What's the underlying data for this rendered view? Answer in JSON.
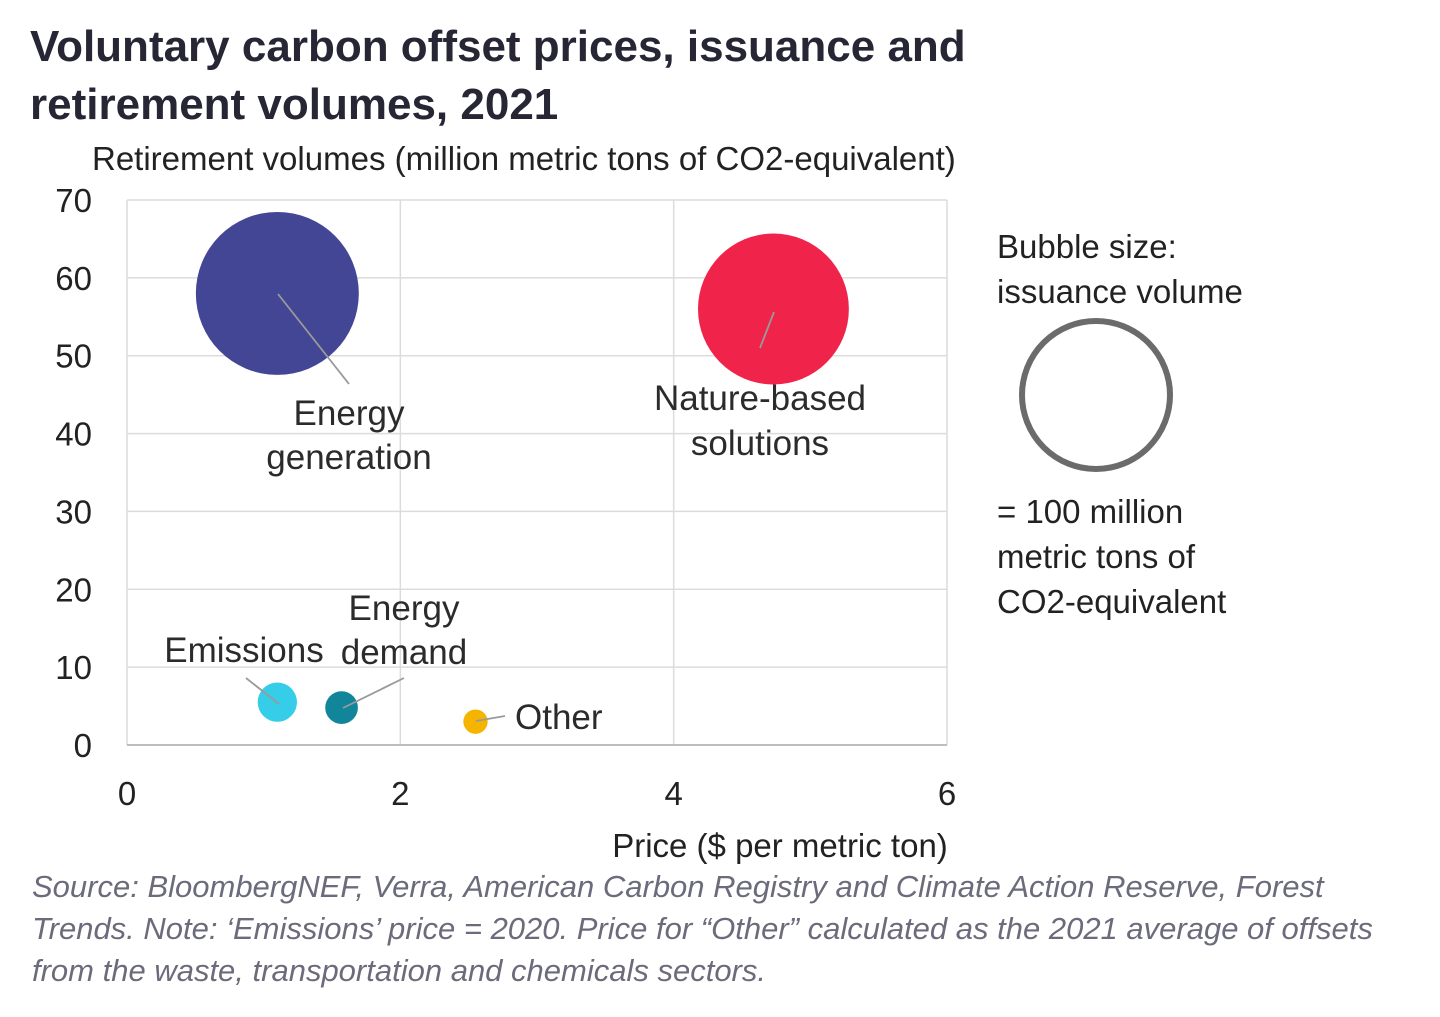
{
  "title_lines": [
    "Voluntary carbon offset prices, issuance and",
    "retirement volumes, 2021"
  ],
  "source_note": "Source: BloombergNEF, Verra, American Carbon Registry and Climate Action Reserve, Forest Trends. Note: ‘Emissions’ price = 2020. Price for “Other” calculated as the 2021 average of offsets from the waste, transportation and chemicals sectors.",
  "legend": {
    "heading_lines": [
      "Bubble size:",
      "issuance volume"
    ],
    "value_lines": [
      "= 100 million",
      "metric tons of",
      "CO2-equivalent"
    ],
    "reference_issuance": 100,
    "circle_color": "#6b6b6b"
  },
  "chart_data": {
    "type": "scatter",
    "subtype": "bubble",
    "ylabel": "Retirement volumes (million metric tons of CO2-equivalent)",
    "xlabel": "Price ($ per metric ton)",
    "xlim": [
      0,
      6
    ],
    "ylim": [
      0,
      70
    ],
    "xticks": [
      "0",
      "2",
      "4",
      "6"
    ],
    "yticks": [
      "0",
      "10",
      "20",
      "30",
      "40",
      "50",
      "60",
      "70"
    ],
    "grid": true,
    "series": [
      {
        "name": "Energy generation",
        "label_lines": [
          "Energy",
          "generation"
        ],
        "x": 1.1,
        "y": 58,
        "issuance": 112,
        "color": "#434595"
      },
      {
        "name": "Nature-based solutions",
        "label_lines": [
          "Nature-based",
          "solutions"
        ],
        "x": 4.73,
        "y": 56,
        "issuance": 96,
        "color": "#f0234a"
      },
      {
        "name": "Emissions",
        "label_lines": [
          "Emissions"
        ],
        "x": 1.1,
        "y": 5.5,
        "issuance": 6.5,
        "color": "#35cde8"
      },
      {
        "name": "Energy demand",
        "label_lines": [
          "Energy",
          "demand"
        ],
        "x": 1.57,
        "y": 4.8,
        "issuance": 4.5,
        "color": "#11869a"
      },
      {
        "name": "Other",
        "label_lines": [
          "Other"
        ],
        "x": 2.55,
        "y": 3,
        "issuance": 2.5,
        "color": "#f5b400"
      }
    ]
  }
}
